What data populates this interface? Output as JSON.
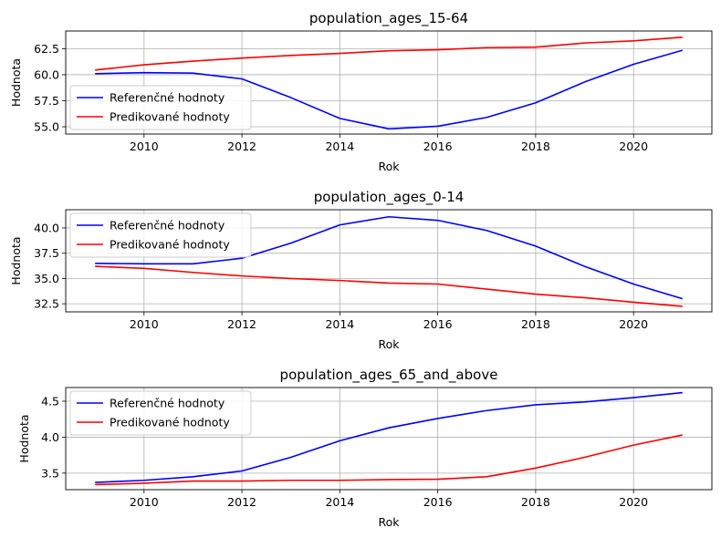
{
  "chart_data": [
    {
      "type": "line",
      "title": "population_ages_15-64",
      "xlabel": "Rok",
      "ylabel": "Hodnota",
      "x": [
        2009,
        2010,
        2011,
        2012,
        2013,
        2014,
        2015,
        2016,
        2017,
        2018,
        2019,
        2020,
        2021
      ],
      "xlim": [
        2008.4,
        2021.6
      ],
      "ylim": [
        54.3,
        64.2
      ],
      "xticks": [
        2010,
        2012,
        2014,
        2016,
        2018,
        2020
      ],
      "yticks": [
        55.0,
        57.5,
        60.0,
        62.5
      ],
      "ytick_labels": [
        "55.0",
        "57.5",
        "60.0",
        "62.5"
      ],
      "grid": true,
      "legend_position": "lower-left",
      "series": [
        {
          "name": "Referenčné hodnoty",
          "color": "#0000ff",
          "values": [
            60.1,
            60.2,
            60.15,
            59.6,
            57.8,
            55.8,
            54.8,
            55.05,
            55.9,
            57.3,
            59.3,
            61.0,
            62.35
          ]
        },
        {
          "name": "Predikované hodnoty",
          "color": "#ff0000",
          "values": [
            60.45,
            60.95,
            61.3,
            61.6,
            61.85,
            62.05,
            62.3,
            62.4,
            62.6,
            62.65,
            63.05,
            63.25,
            63.6
          ]
        }
      ]
    },
    {
      "type": "line",
      "title": "population_ages_0-14",
      "xlabel": "Rok",
      "ylabel": "Hodnota",
      "x": [
        2009,
        2010,
        2011,
        2012,
        2013,
        2014,
        2015,
        2016,
        2017,
        2018,
        2019,
        2020,
        2021
      ],
      "xlim": [
        2008.4,
        2021.6
      ],
      "ylim": [
        31.7,
        41.8
      ],
      "xticks": [
        2010,
        2012,
        2014,
        2016,
        2018,
        2020
      ],
      "yticks": [
        32.5,
        35.0,
        37.5,
        40.0
      ],
      "ytick_labels": [
        "32.5",
        "35.0",
        "37.5",
        "40.0"
      ],
      "grid": true,
      "legend_position": "upper-left",
      "series": [
        {
          "name": "Referenčné hodnoty",
          "color": "#0000ff",
          "values": [
            36.5,
            36.45,
            36.45,
            37.0,
            38.5,
            40.3,
            41.1,
            40.75,
            39.75,
            38.2,
            36.2,
            34.45,
            33.0
          ]
        },
        {
          "name": "Predikované hodnoty",
          "color": "#ff0000",
          "values": [
            36.2,
            36.0,
            35.6,
            35.25,
            35.0,
            34.8,
            34.55,
            34.45,
            33.95,
            33.45,
            33.1,
            32.65,
            32.25
          ]
        }
      ]
    },
    {
      "type": "line",
      "title": "population_ages_65_and_above",
      "xlabel": "Rok",
      "ylabel": "Hodnota",
      "x": [
        2009,
        2010,
        2011,
        2012,
        2013,
        2014,
        2015,
        2016,
        2017,
        2018,
        2019,
        2020,
        2021
      ],
      "xlim": [
        2008.4,
        2021.6
      ],
      "ylim": [
        3.27,
        4.69
      ],
      "xticks": [
        2010,
        2012,
        2014,
        2016,
        2018,
        2020
      ],
      "yticks": [
        3.5,
        4.0,
        4.5
      ],
      "ytick_labels": [
        "3.5",
        "4.0",
        "4.5"
      ],
      "grid": true,
      "legend_position": "upper-left",
      "series": [
        {
          "name": "Referenčné hodnoty",
          "color": "#0000ff",
          "values": [
            3.37,
            3.4,
            3.45,
            3.53,
            3.72,
            3.95,
            4.13,
            4.26,
            4.37,
            4.45,
            4.49,
            4.55,
            4.62
          ]
        },
        {
          "name": "Predikované hodnoty",
          "color": "#ff0000",
          "values": [
            3.34,
            3.36,
            3.39,
            3.39,
            3.4,
            3.4,
            3.41,
            3.415,
            3.45,
            3.57,
            3.72,
            3.89,
            4.03
          ]
        }
      ]
    }
  ]
}
